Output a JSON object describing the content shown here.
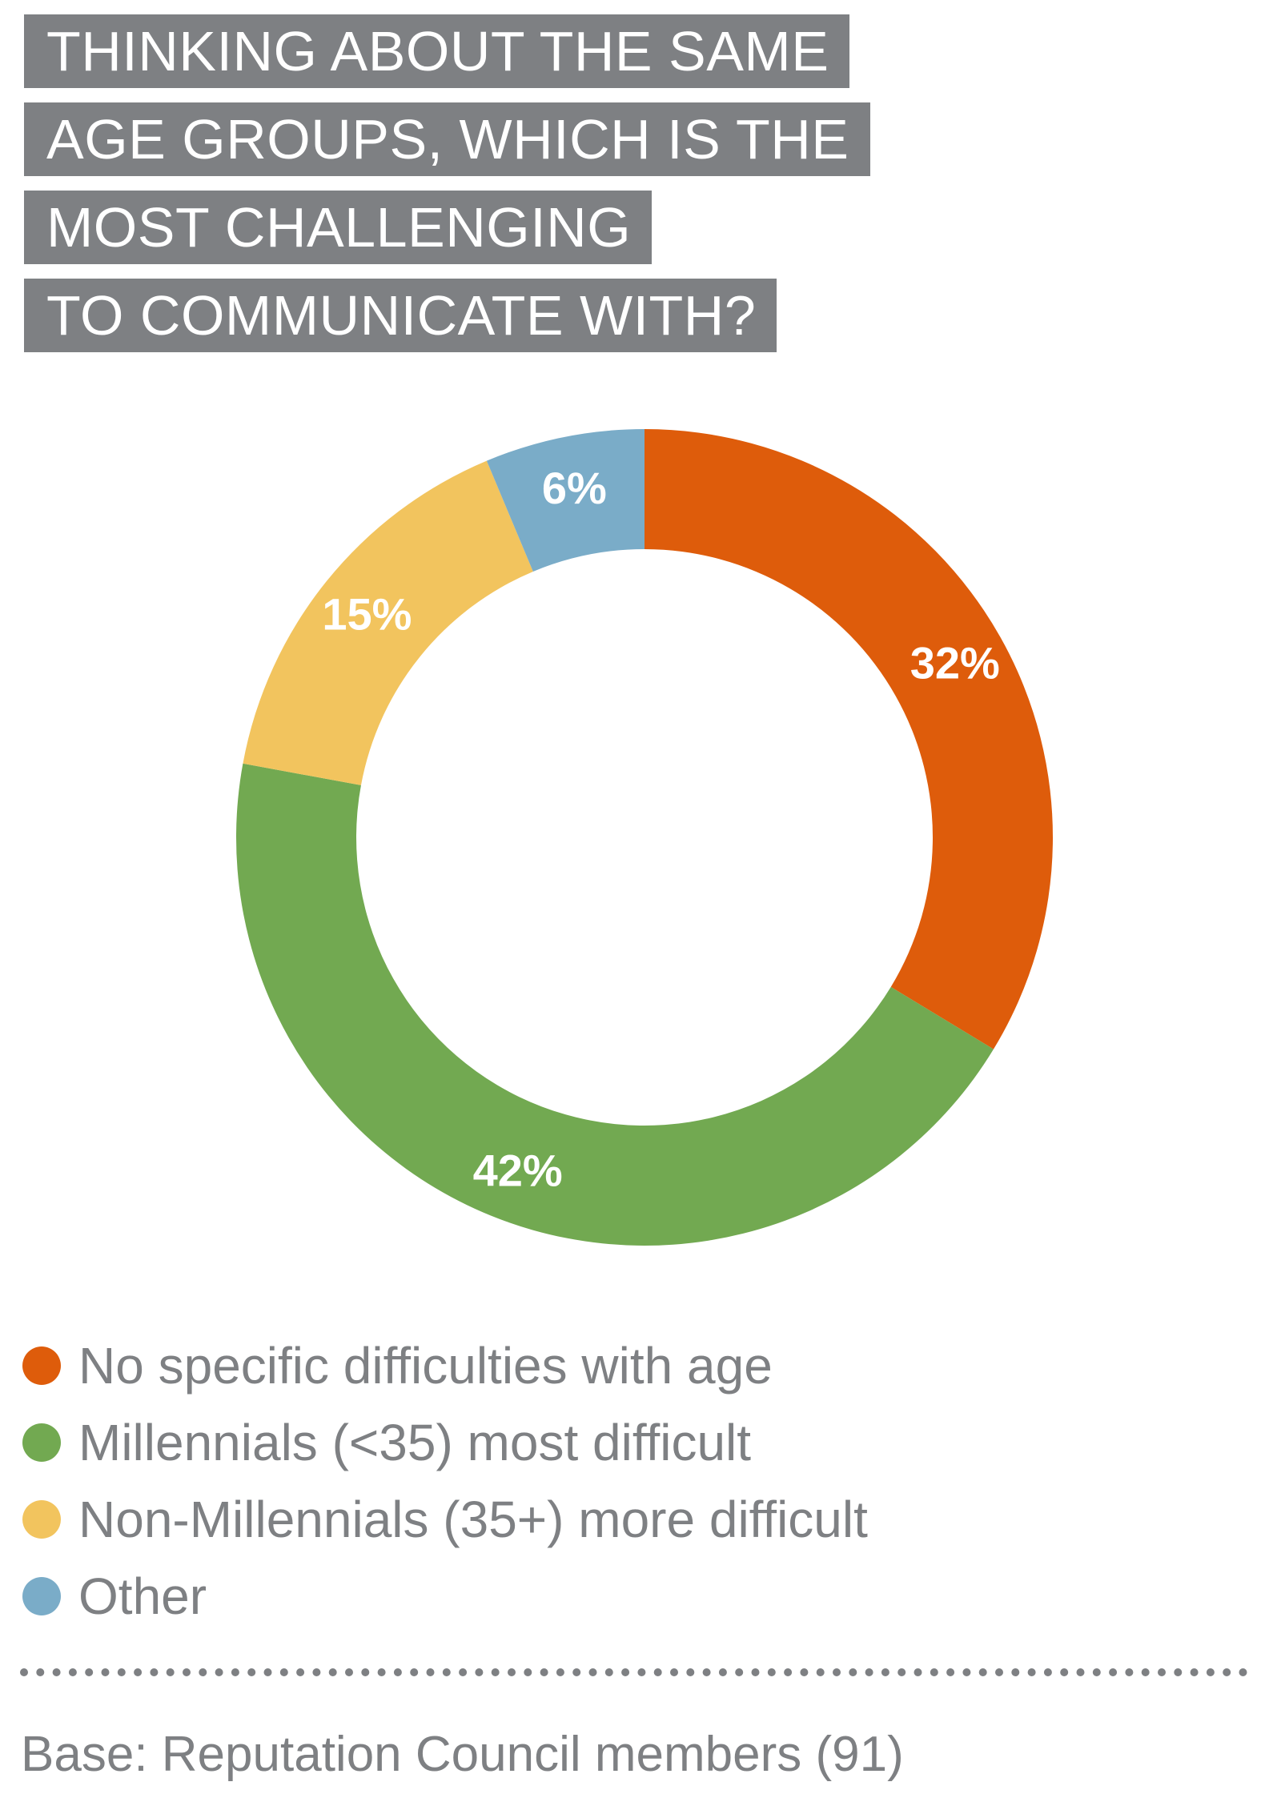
{
  "chart_data": {
    "type": "pie",
    "variant": "donut",
    "title_lines": [
      "THINKING ABOUT THE SAME",
      "AGE GROUPS, WHICH IS THE",
      "MOST CHALLENGING",
      "TO COMMUNICATE WITH?"
    ],
    "slices": [
      {
        "label": "No specific difficulties with age",
        "value": 32,
        "display": "32%",
        "color": "#de5c0b"
      },
      {
        "label": "Millennials (<35) most difficult",
        "value": 42,
        "display": "42%",
        "color": "#72a951"
      },
      {
        "label": "Non-Millennials (35+) more difficult",
        "value": 15,
        "display": "15%",
        "color": "#f2c45e"
      },
      {
        "label": "Other",
        "value": 6,
        "display": "6%",
        "color": "#7aacc8"
      }
    ],
    "legend_position": "bottom-left",
    "footnote": "Base: Reputation Council members (91)"
  },
  "colors": {
    "title_background": "#7e8083",
    "title_text": "#ffffff",
    "muted_text": "#7e8083"
  }
}
